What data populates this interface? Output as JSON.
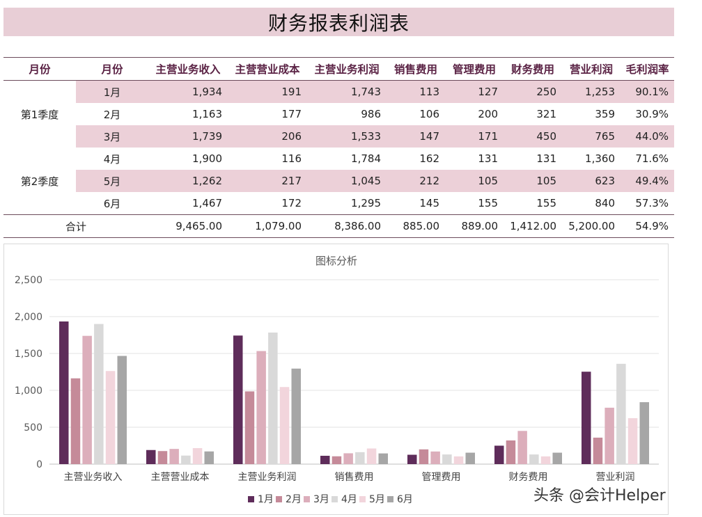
{
  "title": "财务报表利润表",
  "table": {
    "headers": [
      "月份",
      "月份",
      "主营业务收入",
      "主营营业成本",
      "主营业务利润",
      "销售费用",
      "管理费用",
      "财务费用",
      "营业利润",
      "毛利润率"
    ],
    "quarters": [
      "第1季度",
      "第2季度"
    ],
    "rows": [
      {
        "month": "1月",
        "values": [
          "1,934",
          "191",
          "1,743",
          "113",
          "127",
          "250",
          "1,253",
          "90.1%"
        ]
      },
      {
        "month": "2月",
        "values": [
          "1,163",
          "177",
          "986",
          "106",
          "200",
          "321",
          "359",
          "30.9%"
        ]
      },
      {
        "month": "3月",
        "values": [
          "1,739",
          "206",
          "1,533",
          "147",
          "171",
          "450",
          "765",
          "44.0%"
        ]
      },
      {
        "month": "4月",
        "values": [
          "1,900",
          "116",
          "1,784",
          "162",
          "131",
          "131",
          "1,360",
          "71.6%"
        ]
      },
      {
        "month": "5月",
        "values": [
          "1,262",
          "217",
          "1,045",
          "212",
          "105",
          "105",
          "623",
          "49.4%"
        ]
      },
      {
        "month": "6月",
        "values": [
          "1,467",
          "172",
          "1,295",
          "145",
          "155",
          "155",
          "840",
          "57.3%"
        ]
      }
    ],
    "total": {
      "label": "合计",
      "values": [
        "9,465.00",
        "1,079.00",
        "8,386.00",
        "885.00",
        "889.00",
        "1,412.00",
        "5,200.00",
        "54.9%"
      ]
    }
  },
  "chart_data": {
    "type": "bar",
    "title": "图标分析",
    "categories": [
      "主营业务收入",
      "主营营业成本",
      "主营业务利润",
      "销售费用",
      "管理费用",
      "财务费用",
      "营业利润"
    ],
    "series": [
      {
        "name": "1月",
        "color": "#5e2c5a",
        "values": [
          1934,
          191,
          1743,
          113,
          127,
          250,
          1253
        ]
      },
      {
        "name": "2月",
        "color": "#c58a99",
        "values": [
          1163,
          177,
          986,
          106,
          200,
          321,
          359
        ]
      },
      {
        "name": "3月",
        "color": "#dcaebb",
        "values": [
          1739,
          206,
          1533,
          147,
          171,
          450,
          765
        ]
      },
      {
        "name": "4月",
        "color": "#d9d9d9",
        "values": [
          1900,
          116,
          1784,
          162,
          131,
          131,
          1360
        ]
      },
      {
        "name": "5月",
        "color": "#f2d5dc",
        "values": [
          1262,
          217,
          1045,
          212,
          105,
          105,
          623
        ]
      },
      {
        "name": "6月",
        "color": "#a6a6a6",
        "values": [
          1467,
          172,
          1295,
          145,
          155,
          155,
          840
        ]
      }
    ],
    "ylim": [
      0,
      2500
    ],
    "yticks": [
      "0",
      "500",
      "1,000",
      "1,500",
      "2,000",
      "2,500"
    ],
    "grid": true,
    "legend": "bottom"
  },
  "watermark": "头条 @会计Helper"
}
